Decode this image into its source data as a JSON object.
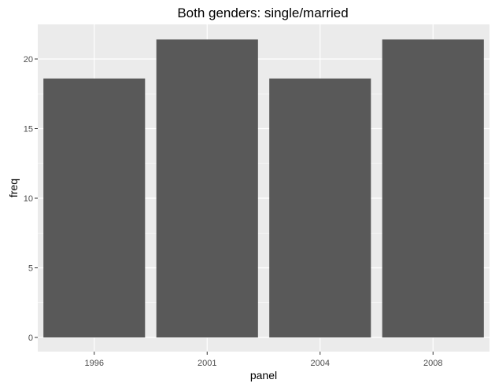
{
  "chart_data": {
    "type": "bar",
    "title": "Both genders: single/married",
    "xlabel": "panel",
    "ylabel": "freq",
    "categories": [
      "1996",
      "2001",
      "2004",
      "2008"
    ],
    "values": [
      18.6,
      21.4,
      18.6,
      21.4
    ],
    "ylim": [
      0,
      22.45
    ],
    "yticks": [
      0,
      5,
      10,
      15,
      20
    ],
    "grid": true,
    "colors": {
      "panel_background": "#ebebeb",
      "grid": "#ffffff",
      "bar": "#595959",
      "tick": "#333333"
    }
  }
}
